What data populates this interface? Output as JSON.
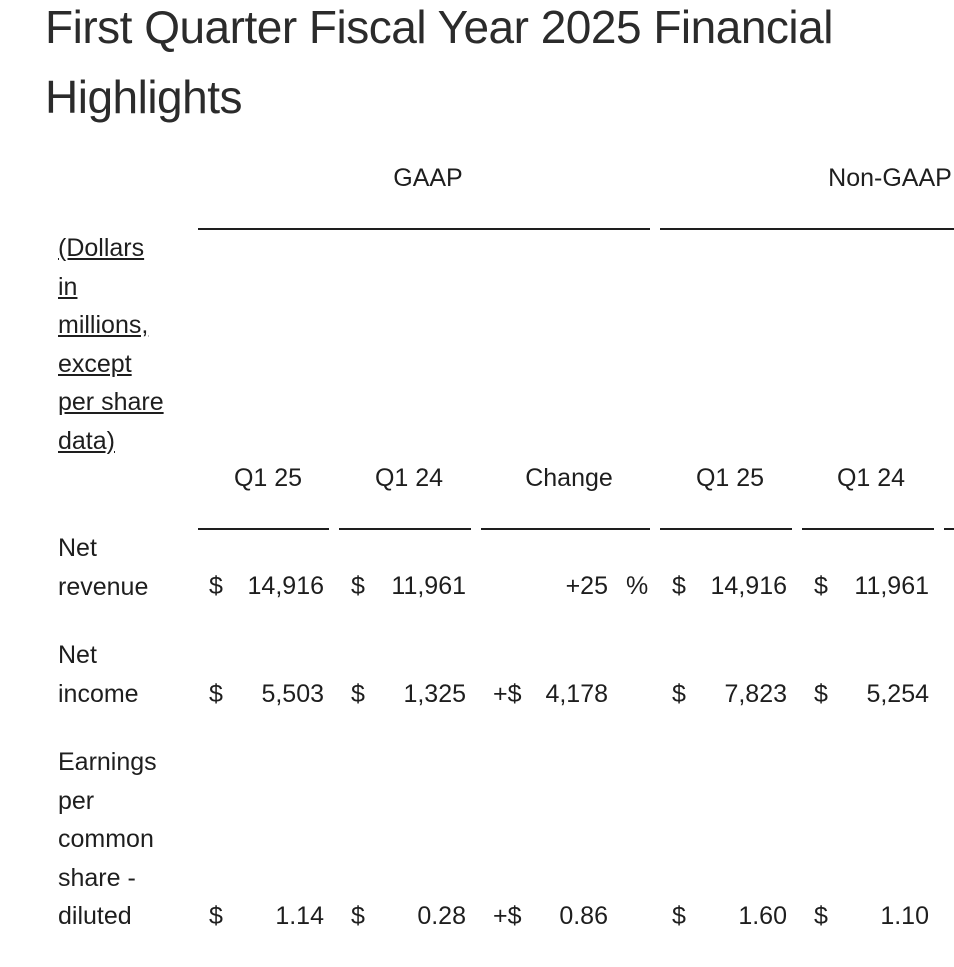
{
  "title": "First Quarter Fiscal Year 2025 Financial Highlights",
  "groups": {
    "gaap": "GAAP",
    "non_gaap": "Non-GAAP"
  },
  "units_label": "(Dollars in millions, except per share data)",
  "columns": {
    "gaap_q1_25": "Q1 25",
    "gaap_q1_24": "Q1 24",
    "change": "Change",
    "nongaap_q1_25": "Q1 25",
    "nongaap_q1_24": "Q1 24"
  },
  "currency": "$",
  "rows": [
    {
      "label": "Net revenue",
      "gaap_q1_25": "14,916",
      "gaap_q1_24": "11,961",
      "change": "+25",
      "change_prefix": "",
      "change_suffix": "%",
      "nongaap_q1_25": "14,916",
      "nongaap_q1_24": "11,961"
    },
    {
      "label": "Net income",
      "gaap_q1_25": "5,503",
      "gaap_q1_24": "1,325",
      "change": "4,178",
      "change_prefix": "+$",
      "change_suffix": "",
      "nongaap_q1_25": "7,823",
      "nongaap_q1_24": "5,254"
    },
    {
      "label": "Earnings per common share - diluted",
      "gaap_q1_25": "1.14",
      "gaap_q1_24": "0.28",
      "change": "0.86",
      "change_prefix": "+$",
      "change_suffix": "",
      "nongaap_q1_25": "1.60",
      "nongaap_q1_24": "1.10"
    }
  ]
}
